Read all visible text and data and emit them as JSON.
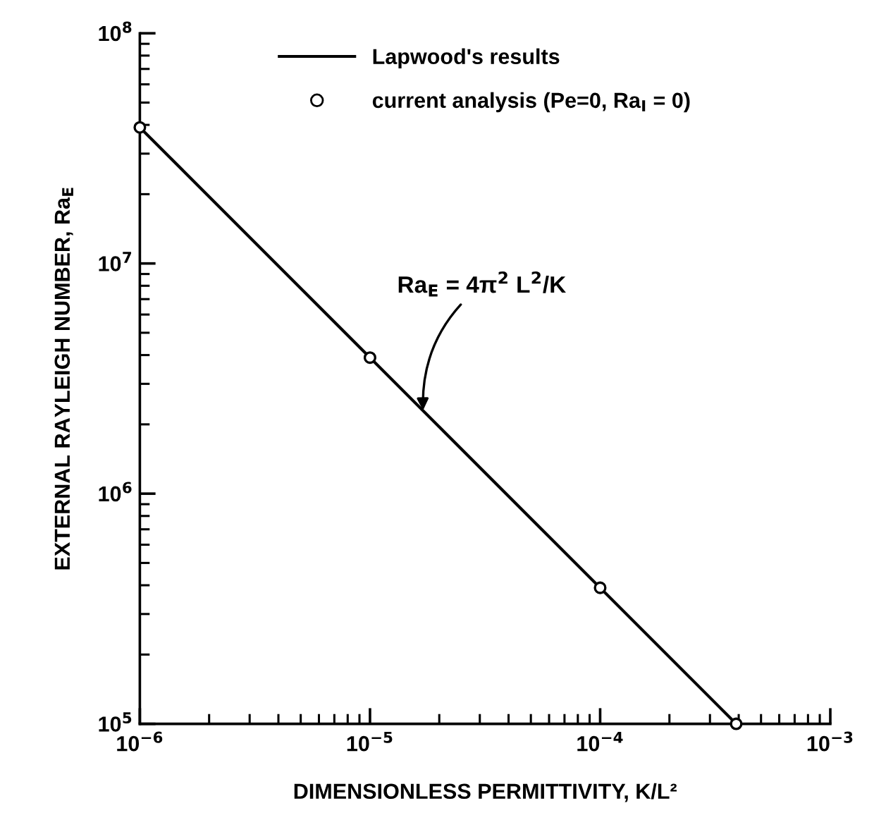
{
  "chart_data": {
    "type": "line",
    "xlabel": "DIMENSIONLESS PERMITTIVITY, K/L²",
    "ylabel": "EXTERNAL RAYLEIGH NUMBER, Ra$_{E}$",
    "log": "xy",
    "xlim": [
      1e-06,
      0.001
    ],
    "ylim": [
      100000.0,
      100000000.0
    ],
    "xticks": [
      {
        "value": 1e-06,
        "label": "10$^{−6}$"
      },
      {
        "value": 1e-05,
        "label": "10$^{−5}$"
      },
      {
        "value": 0.0001,
        "label": "10$^{−4}$"
      },
      {
        "value": 0.001,
        "label": "10$^{−3}$"
      }
    ],
    "yticks": [
      {
        "value": 100000.0,
        "label": "10$^{5}$"
      },
      {
        "value": 1000000.0,
        "label": "10$^{6}$"
      },
      {
        "value": 10000000.0,
        "label": "10$^{7}$"
      },
      {
        "value": 100000000.0,
        "label": "10$^{8}$"
      }
    ],
    "grid": false,
    "legend": "top",
    "series": [
      {
        "name": "Lapwood's results",
        "color": "#000000",
        "marker": "none",
        "line_style": "solid",
        "x": [
          1e-06,
          0.00039
        ],
        "values": [
          39000000.0,
          100000.0
        ]
      },
      {
        "name": "current analysis (Pe=0, Ra$_{I}$ = 0)",
        "type": "scatter",
        "color": "#000000",
        "marker": "circle",
        "x": [
          1e-06,
          1e-05,
          0.0001,
          0.00039
        ],
        "values": [
          39000000.0,
          3900000.0,
          390000.0,
          100000.0
        ]
      }
    ],
    "annotations": [
      {
        "text": "Ra$_{E}$ = 4π$^{2}$ L$^{2}$/K",
        "x": 1.7e-05,
        "y": 2300000.0
      }
    ]
  }
}
